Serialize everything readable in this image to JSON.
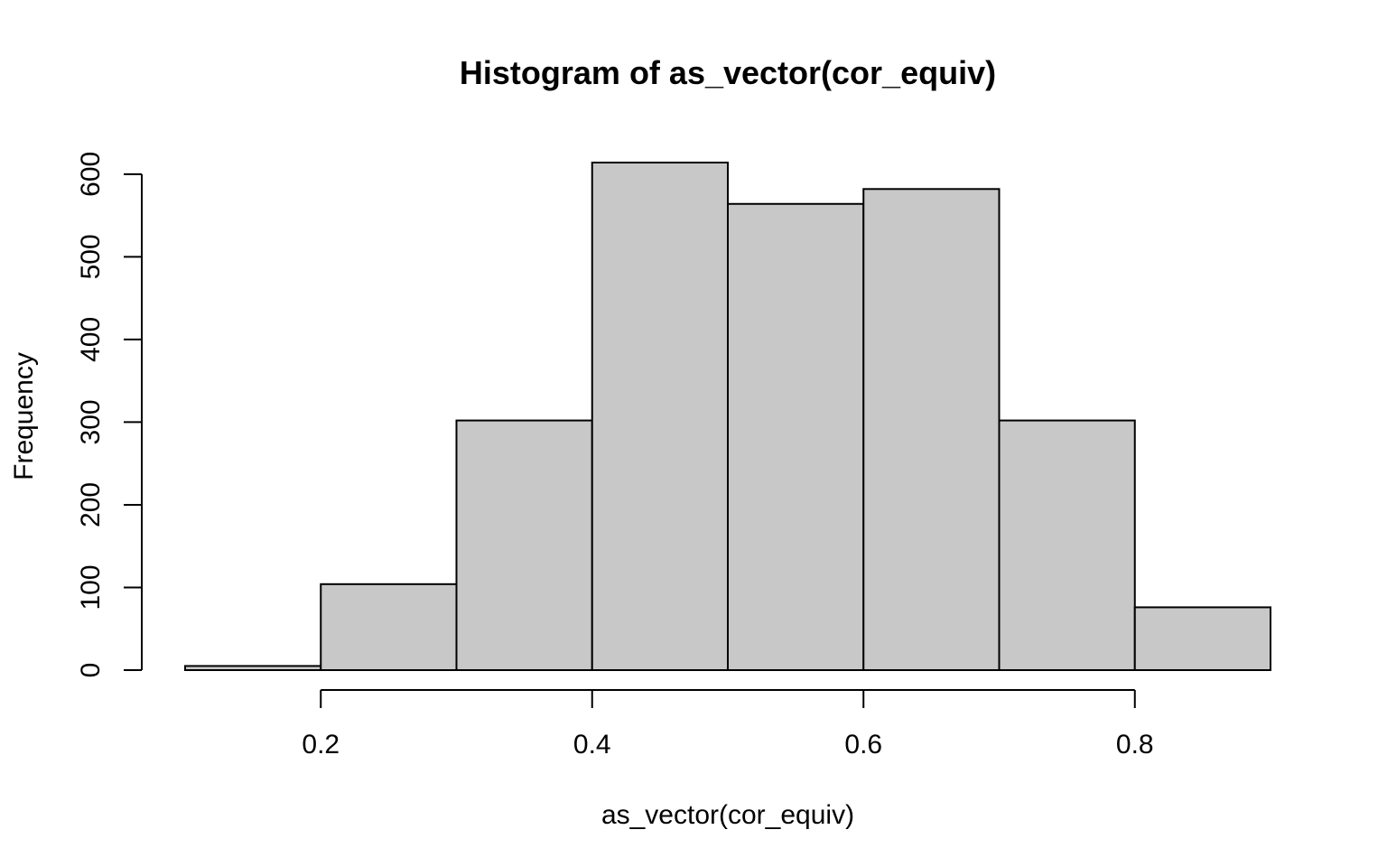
{
  "chart_data": {
    "type": "bar",
    "title": "Histogram of as_vector(cor_equiv)",
    "xlabel": "as_vector(cor_equiv)",
    "ylabel": "Frequency",
    "bins": [
      {
        "x0": 0.1,
        "x1": 0.2,
        "count": 5
      },
      {
        "x0": 0.2,
        "x1": 0.3,
        "count": 104
      },
      {
        "x0": 0.3,
        "x1": 0.4,
        "count": 302
      },
      {
        "x0": 0.4,
        "x1": 0.5,
        "count": 614
      },
      {
        "x0": 0.5,
        "x1": 0.6,
        "count": 564
      },
      {
        "x0": 0.6,
        "x1": 0.7,
        "count": 582
      },
      {
        "x0": 0.7,
        "x1": 0.8,
        "count": 302
      },
      {
        "x0": 0.8,
        "x1": 0.9,
        "count": 76
      }
    ],
    "xlim": [
      0.1,
      0.9
    ],
    "ylim": [
      0,
      614
    ],
    "x_ticks": [
      {
        "value": 0.2,
        "label": "0.2"
      },
      {
        "value": 0.4,
        "label": "0.4"
      },
      {
        "value": 0.6,
        "label": "0.6"
      },
      {
        "value": 0.8,
        "label": "0.8"
      }
    ],
    "y_ticks": [
      {
        "value": 0,
        "label": "0"
      },
      {
        "value": 100,
        "label": "100"
      },
      {
        "value": 200,
        "label": "200"
      },
      {
        "value": 300,
        "label": "300"
      },
      {
        "value": 400,
        "label": "400"
      },
      {
        "value": 500,
        "label": "500"
      },
      {
        "value": 600,
        "label": "600"
      }
    ],
    "grid": false,
    "bar_fill": "#c8c8c8",
    "bar_stroke": "#000000"
  }
}
